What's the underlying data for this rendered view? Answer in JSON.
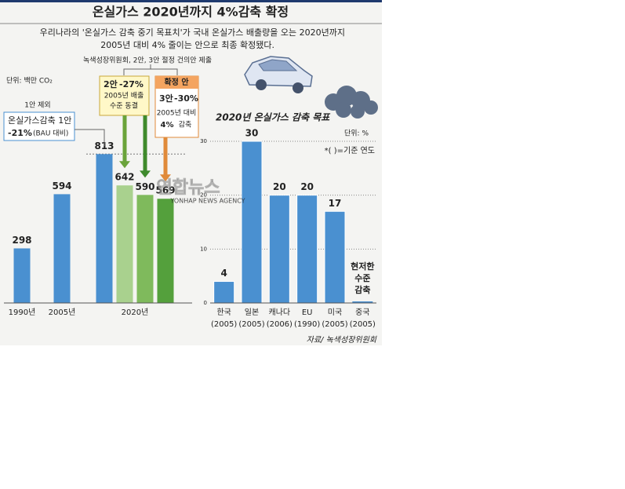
{
  "title": "온실가스 2020년까지 4%감축 확정",
  "subtitle": [
    "우리나라의 '온실가스 감축 중기 목표치'가 국내 온실가스 배출량을 오는 2020년까지",
    "2005년 대비 4% 줄이는 안으로 최종 확정됐다."
  ],
  "watermark": {
    "main": "연합뉴스",
    "sub": "YONHAP NEWS AGENCY"
  },
  "chart_data": [
    {
      "type": "bar",
      "unit": "단위: 백만 CO₂",
      "categories": [
        "1990년",
        "2005년",
        null,
        null,
        null,
        null
      ],
      "group_label": "2020년",
      "values": [
        298,
        594,
        813,
        642,
        590,
        569
      ],
      "colors": [
        "#4a90d0",
        "#4a90d0",
        "#4a90d0",
        "#a9d18e",
        "#7fba5c",
        "#54a03c"
      ],
      "ylim": [
        0,
        900
      ],
      "annotations": {
        "submission": "녹색성장위원회, 2안, 3안 절정 건의안 제출",
        "excluded": "1안 제외",
        "plan1": {
          "name": "온실가스감축 1안",
          "cut": "-21%",
          "basis": "(BAU 대비)"
        },
        "plan2": {
          "name": "2안",
          "cut": "-27%",
          "lines": [
            "2005년 배출",
            "수준 동결"
          ]
        },
        "final": {
          "header": "확정 안",
          "name": "3안",
          "cut": "-30%",
          "line": "2005년 대비",
          "cut2": "4%",
          "tail": "감축"
        }
      }
    },
    {
      "type": "bar",
      "title": "2020년 온실가스 감축 목표",
      "unit": "단위: %",
      "note": "*( )=기준 연도",
      "categories": [
        "한국",
        "일본",
        "캐나다",
        "EU",
        "미국",
        "중국"
      ],
      "base_years": [
        "(2005)",
        "(2005)",
        "(2006)",
        "(1990)",
        "(2005)",
        "(2005)"
      ],
      "values": [
        4,
        30,
        20,
        20,
        17,
        null
      ],
      "annotation": [
        "현저한",
        "수준",
        "감축"
      ],
      "color": "#4a90d0",
      "ylim": [
        0,
        30
      ],
      "yticks": [
        0,
        10,
        20,
        30
      ],
      "grid": true
    }
  ],
  "source": "자료/ 녹색성장위원회"
}
